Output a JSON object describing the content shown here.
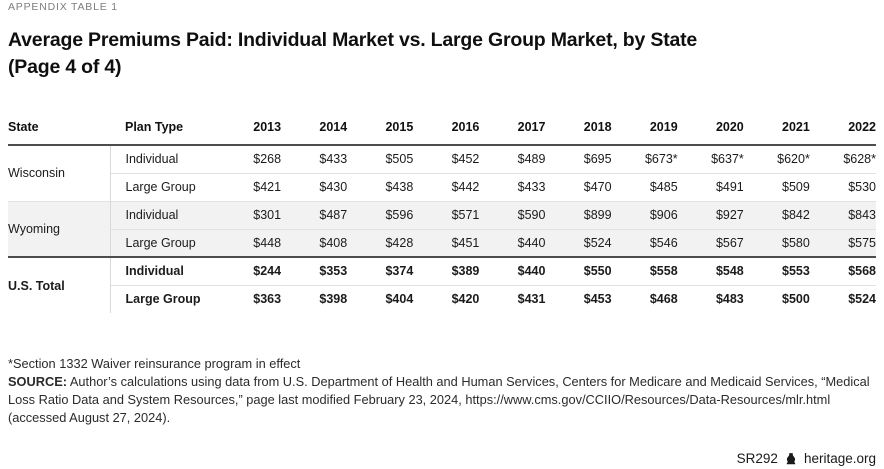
{
  "appendix_label": "APPENDIX TABLE 1",
  "title_line1": "Average Premiums Paid: Individual Market vs. Large Group Market, by State",
  "title_line2": "(Page 4 of 4)",
  "chart_data": {
    "type": "table",
    "columns": [
      "State",
      "Plan Type",
      "2013",
      "2014",
      "2015",
      "2016",
      "2017",
      "2018",
      "2019",
      "2020",
      "2021",
      "2022"
    ],
    "groups": [
      {
        "state": "Wisconsin",
        "shaded": false,
        "bold": false,
        "rows": [
          {
            "plan_type": "Individual",
            "values": [
              "$268",
              "$433",
              "$505",
              "$452",
              "$489",
              "$695",
              "$673*",
              "$637*",
              "$620*",
              "$628*"
            ]
          },
          {
            "plan_type": "Large Group",
            "values": [
              "$421",
              "$430",
              "$438",
              "$442",
              "$433",
              "$470",
              "$485",
              "$491",
              "$509",
              "$530"
            ]
          }
        ]
      },
      {
        "state": "Wyoming",
        "shaded": true,
        "bold": false,
        "rows": [
          {
            "plan_type": "Individual",
            "values": [
              "$301",
              "$487",
              "$596",
              "$571",
              "$590",
              "$899",
              "$906",
              "$927",
              "$842",
              "$843"
            ]
          },
          {
            "plan_type": "Large Group",
            "values": [
              "$448",
              "$408",
              "$428",
              "$451",
              "$440",
              "$524",
              "$546",
              "$567",
              "$580",
              "$575"
            ]
          }
        ]
      },
      {
        "state": "U.S. Total",
        "shaded": false,
        "bold": true,
        "rows": [
          {
            "plan_type": "Individual",
            "values": [
              "$244",
              "$353",
              "$374",
              "$389",
              "$440",
              "$550",
              "$558",
              "$548",
              "$553",
              "$568"
            ]
          },
          {
            "plan_type": "Large Group",
            "values": [
              "$363",
              "$398",
              "$404",
              "$420",
              "$431",
              "$453",
              "$468",
              "$483",
              "$500",
              "$524"
            ]
          }
        ]
      }
    ]
  },
  "footnotes": {
    "asterisk_note": "*Section 1332 Waiver reinsurance program in effect",
    "source_label": "SOURCE:",
    "source_text": " Author’s calculations using data from U.S. Department of Health and Human Services, Centers for Medicare and Medicaid Services, “Medical Loss Ratio Data and System Resources,” page last modified February 23, 2024, https://www.cms.gov/CCIIO/Resources/Data-Resources/mlr.html (accessed August 27, 2024)."
  },
  "footer": {
    "report_id": "SR292",
    "site": "heritage.org",
    "logo_icon": "heritage-bell-icon"
  },
  "colors": {
    "band_gray": "#f2f2f2",
    "dark_rule": "#4d4d4d",
    "light_rule": "#e2e2e2",
    "label_gray": "#7d7d7d"
  }
}
